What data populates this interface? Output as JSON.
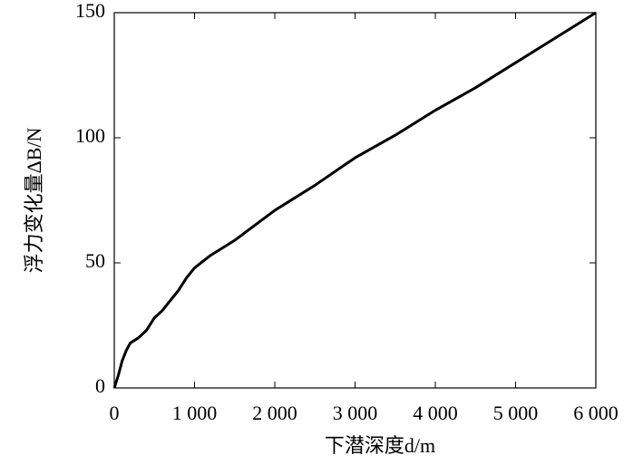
{
  "chart_data": {
    "type": "line",
    "x_label": "下潜深度d/m",
    "y_label": "浮力变化量ΔB/N",
    "x": [
      0,
      20,
      50,
      100,
      150,
      200,
      300,
      400,
      500,
      600,
      800,
      900,
      1000,
      1200,
      1500,
      2000,
      2500,
      3000,
      3500,
      4000,
      4500,
      5000,
      5500,
      6000
    ],
    "series": [
      {
        "color": "#000000",
        "values": [
          0,
          2,
          5,
          11,
          15,
          18,
          20,
          23,
          28,
          31,
          39,
          44,
          48,
          53,
          59,
          71,
          81,
          92,
          101,
          111,
          120,
          130,
          140,
          150
        ]
      }
    ],
    "xlim": [
      0,
      6000
    ],
    "xticks": [
      0,
      {
        "value": 1000,
        "label": "1 000"
      },
      {
        "value": 2000,
        "label": "2 000"
      },
      {
        "value": 3000,
        "label": "3 000"
      },
      {
        "value": 4000,
        "label": "4 000"
      },
      {
        "value": 5000,
        "label": "5 000"
      },
      {
        "value": 6000,
        "label": "6 000"
      }
    ],
    "ylim": [
      0,
      150
    ],
    "yticks": [
      0,
      50,
      100,
      150
    ],
    "grid": false
  }
}
